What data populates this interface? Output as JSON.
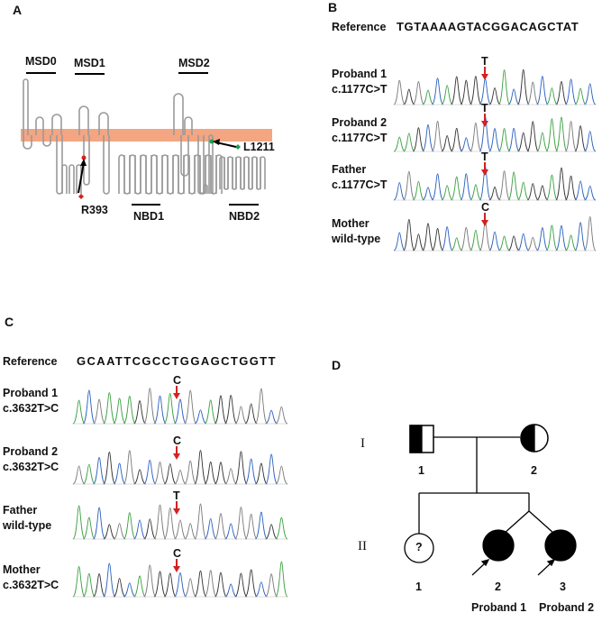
{
  "panel_a": {
    "label": "A",
    "domains": {
      "msd0": "MSD0",
      "msd1": "MSD1",
      "msd2": "MSD2",
      "nbd1": "NBD1",
      "nbd2": "NBD2"
    },
    "variants": [
      {
        "name": "R393",
        "color": "#d42020"
      },
      {
        "name": "L1211",
        "color": "#1aa050"
      }
    ],
    "membrane_color": "#f4a582"
  },
  "panel_b": {
    "label": "B",
    "reference_label": "Reference",
    "reference_seq": "TGTAAAAGTACGGACAGCTAT",
    "rows": [
      {
        "name": "Proband 1",
        "variant": "c.1177C>T",
        "base": "T"
      },
      {
        "name": "Proband 2",
        "variant": "c.1177C>T",
        "base": "T"
      },
      {
        "name": "Father",
        "variant": "c.1177C>T",
        "base": "T"
      },
      {
        "name": "Mother",
        "variant": "wild-type",
        "base": "C"
      }
    ]
  },
  "panel_c": {
    "label": "C",
    "reference_label": "Reference",
    "reference_seq": "GCAATTCGCCTGGAGCTGGTT",
    "rows": [
      {
        "name": "Proband 1",
        "variant": "c.3632T>C",
        "base": "C"
      },
      {
        "name": "Proband 2",
        "variant": "c.3632T>C",
        "base": "C"
      },
      {
        "name": "Father",
        "variant": "wild-type",
        "base": "T"
      },
      {
        "name": "Mother",
        "variant": "c.3632T>C",
        "base": "C"
      }
    ]
  },
  "panel_d": {
    "label": "D",
    "generations": [
      "I",
      "II"
    ],
    "gen1": [
      "1",
      "2"
    ],
    "gen2": [
      "1",
      "2",
      "3"
    ],
    "unknown_mark": "?",
    "probands": [
      "Proband 1",
      "Proband 2"
    ]
  },
  "colors": {
    "arrow": "#d42020",
    "trace_a": "#333333",
    "trace_c": "#2a60c0",
    "trace_g": "#7a7a7a",
    "trace_t": "#3aa040"
  }
}
